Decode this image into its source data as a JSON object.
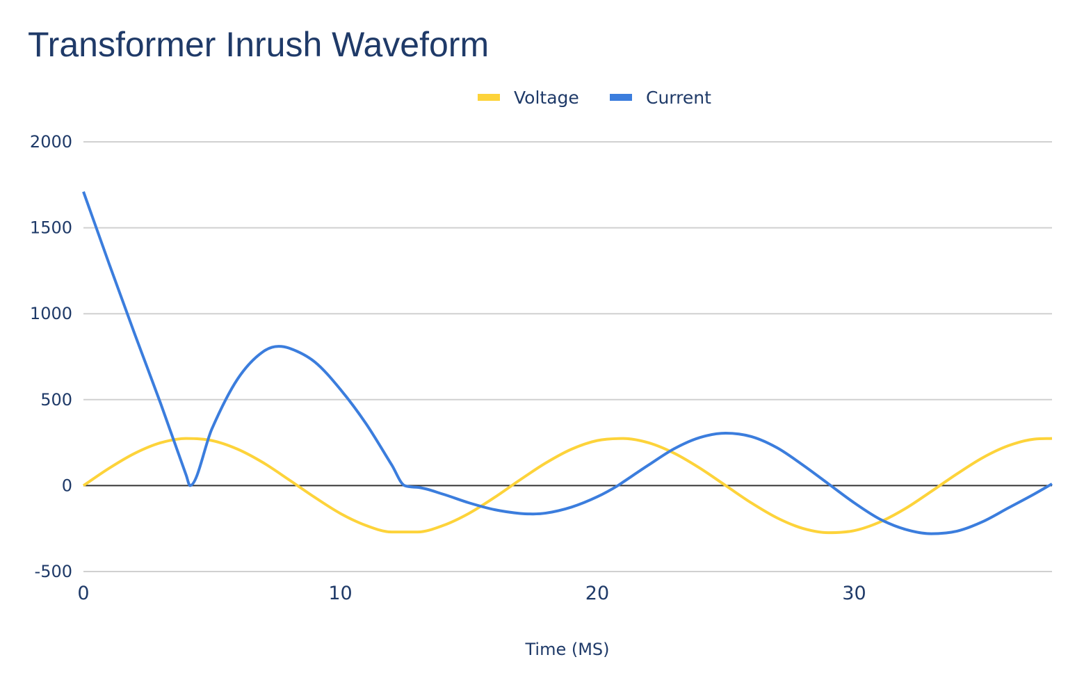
{
  "chart_data": {
    "type": "line",
    "title": "Transformer Inrush Waveform",
    "xlabel": "Time (MS)",
    "ylabel": "",
    "xlim": [
      0,
      37.7
    ],
    "ylim": [
      -500,
      2000
    ],
    "xticks": [
      "0",
      "10",
      "20",
      "30"
    ],
    "yticks": [
      "2000",
      "1500",
      "1000",
      "500",
      "0",
      "-500"
    ],
    "grid": true,
    "legend_position": "top",
    "series": [
      {
        "name": "Voltage",
        "color": "#FDD33A",
        "x": [
          0,
          1,
          2,
          3,
          4,
          5,
          6,
          7,
          8,
          9,
          10,
          11,
          12,
          13,
          14,
          15,
          16,
          17,
          18,
          19,
          20,
          21,
          22,
          23,
          24,
          25,
          26,
          27,
          28,
          29,
          30,
          31,
          32,
          33,
          34,
          35,
          36,
          37,
          37.7
        ],
        "y": [
          0,
          101,
          188,
          249,
          274,
          262,
          212,
          133,
          34,
          -68,
          -162,
          -232,
          -270,
          -270,
          -232,
          -162,
          -69,
          34,
          132,
          212,
          262,
          274,
          249,
          188,
          101,
          0,
          -101,
          -188,
          -249,
          -274,
          -262,
          -212,
          -133,
          -34,
          68,
          162,
          232,
          270,
          274
        ]
      },
      {
        "name": "Current",
        "color": "#3B7DDD",
        "x": [
          0,
          1,
          2,
          3,
          4,
          4.15,
          5,
          6,
          7,
          7.6,
          8,
          9,
          10,
          11,
          12,
          12.5,
          13,
          14,
          15,
          16,
          17,
          17.5,
          18,
          19,
          20,
          20.8,
          21,
          22,
          23,
          24,
          25,
          26,
          27,
          28,
          29,
          30,
          31,
          32,
          33,
          34,
          35,
          36,
          37,
          37.7
        ],
        "y": [
          1710,
          1290,
          880,
          480,
          60,
          0,
          330,
          620,
          780,
          810,
          800,
          720,
          560,
          360,
          120,
          0,
          -10,
          -50,
          -100,
          -140,
          -162,
          -165,
          -160,
          -125,
          -65,
          0,
          20,
          120,
          215,
          280,
          305,
          285,
          220,
          120,
          10,
          -100,
          -195,
          -255,
          -280,
          -265,
          -210,
          -130,
          -50,
          10
        ]
      }
    ]
  }
}
